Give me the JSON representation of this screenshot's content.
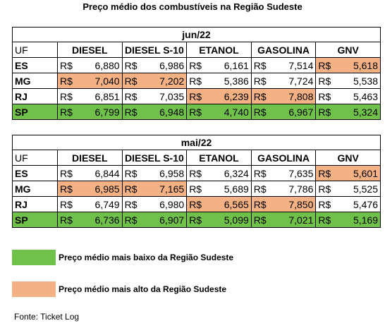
{
  "title": "Preço médio dos combustíveis na Região Sudeste",
  "currency": "R$",
  "columns": [
    "UF",
    "DIESEL",
    "DIESEL S-10",
    "ETANOL",
    "GASOLINA",
    "GNV"
  ],
  "colors": {
    "lowest": "#70c14a",
    "highest": "#f4b183"
  },
  "tables": [
    {
      "period": "jun/22",
      "rows": [
        {
          "uf": "ES",
          "values": [
            "6,880",
            "6,986",
            "6,161",
            "7,514",
            "5,618"
          ],
          "marks": [
            "",
            "",
            "",
            "",
            "hi"
          ]
        },
        {
          "uf": "MG",
          "values": [
            "7,040",
            "7,202",
            "5,386",
            "7,724",
            "5,538"
          ],
          "marks": [
            "hi",
            "hi",
            "",
            "",
            ""
          ]
        },
        {
          "uf": "RJ",
          "values": [
            "6,851",
            "7,035",
            "6,239",
            "7,808",
            "5,463"
          ],
          "marks": [
            "",
            "",
            "hi",
            "hi",
            ""
          ]
        },
        {
          "uf": "SP",
          "values": [
            "6,799",
            "6,948",
            "4,740",
            "6,967",
            "5,324"
          ],
          "marks": [
            "lo",
            "lo",
            "lo",
            "lo",
            "lo"
          ]
        }
      ]
    },
    {
      "period": "mai/22",
      "rows": [
        {
          "uf": "ES",
          "values": [
            "6,844",
            "6,958",
            "6,324",
            "7,635",
            "5,601"
          ],
          "marks": [
            "",
            "",
            "",
            "",
            "hi"
          ]
        },
        {
          "uf": "MG",
          "values": [
            "6,985",
            "7,165",
            "5,689",
            "7,786",
            "5,525"
          ],
          "marks": [
            "hi",
            "hi",
            "",
            "",
            ""
          ]
        },
        {
          "uf": "RJ",
          "values": [
            "6,749",
            "6,980",
            "6,565",
            "7,850",
            "5,476"
          ],
          "marks": [
            "",
            "",
            "hi",
            "hi",
            ""
          ]
        },
        {
          "uf": "SP",
          "values": [
            "6,736",
            "6,907",
            "5,099",
            "7,021",
            "5,169"
          ],
          "marks": [
            "lo",
            "lo",
            "lo",
            "lo",
            "lo"
          ]
        }
      ]
    }
  ],
  "legend": {
    "lowest": "Preço médio mais baixo da Região Sudeste",
    "highest": "Preço médio mais alto da Região Sudeste"
  },
  "source": "Fonte: Ticket Log"
}
